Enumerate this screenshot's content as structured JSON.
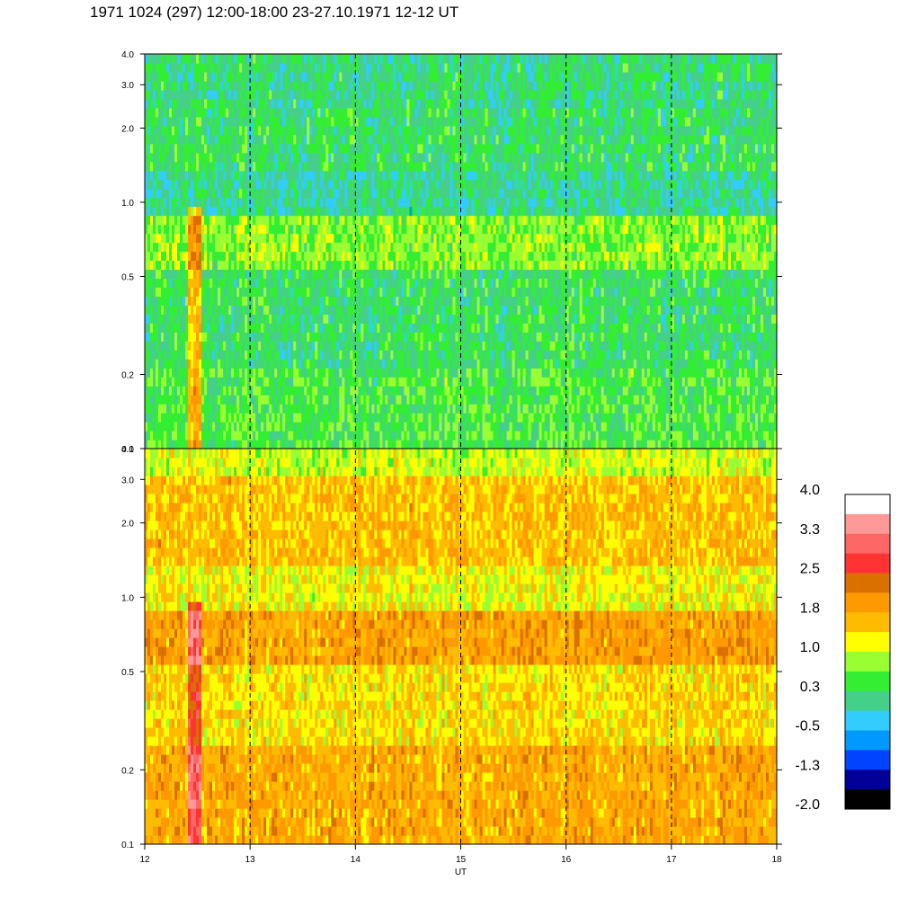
{
  "title": "1971 1024 (297) 12:00-18:00 23-27.10.1971  12-12 UT",
  "chart_data": {
    "type": "heatmap",
    "xlabel": "UT",
    "x_ticks": [
      "12",
      "13",
      "14",
      "15",
      "16",
      "17",
      "18"
    ],
    "xlim": [
      12,
      18
    ],
    "y_scale": "log",
    "y_ticks": [
      "0.1",
      "0.2",
      "0.5",
      "1.0",
      "2.0",
      "3.0",
      "4.0"
    ],
    "y_tick_values": [
      0.1,
      0.2,
      0.5,
      1.0,
      2.0,
      3.0,
      4.0
    ],
    "ylim": [
      0.1,
      4.0
    ],
    "panels": [
      {
        "id": "upper",
        "bands": [
          {
            "from": 0.1,
            "to": 0.22,
            "level": 0.4
          },
          {
            "from": 0.22,
            "to": 0.55,
            "level": 0.2
          },
          {
            "from": 0.55,
            "to": 0.85,
            "level": 0.7
          },
          {
            "from": 0.85,
            "to": 1.3,
            "level": 0.0
          },
          {
            "from": 1.3,
            "to": 2.5,
            "level": 0.2
          },
          {
            "from": 2.5,
            "to": 4.0,
            "level": 0.1
          }
        ],
        "events": [
          12.45,
          12.5
        ]
      },
      {
        "id": "lower",
        "bands": [
          {
            "from": 0.1,
            "to": 0.25,
            "level": 1.8
          },
          {
            "from": 0.25,
            "to": 0.55,
            "level": 1.4
          },
          {
            "from": 0.55,
            "to": 0.85,
            "level": 1.9
          },
          {
            "from": 0.85,
            "to": 1.4,
            "level": 1.2
          },
          {
            "from": 1.4,
            "to": 3.0,
            "level": 1.6
          },
          {
            "from": 3.0,
            "to": 4.0,
            "level": 1.0
          }
        ],
        "events": [
          12.45,
          12.5
        ]
      }
    ],
    "colorbar": {
      "labels": [
        "4.0",
        "3.3",
        "2.5",
        "1.8",
        "1.0",
        "0.3",
        "-0.5",
        "-1.3",
        "-2.0"
      ],
      "colors": [
        "#ffffff",
        "#ff9999",
        "#ff6666",
        "#ff3333",
        "#d97000",
        "#ff9900",
        "#ffbb00",
        "#ffff00",
        "#99ff33",
        "#33ee33",
        "#44d088",
        "#33ccff",
        "#0099ff",
        "#0044ff",
        "#000099",
        "#000000"
      ]
    }
  }
}
